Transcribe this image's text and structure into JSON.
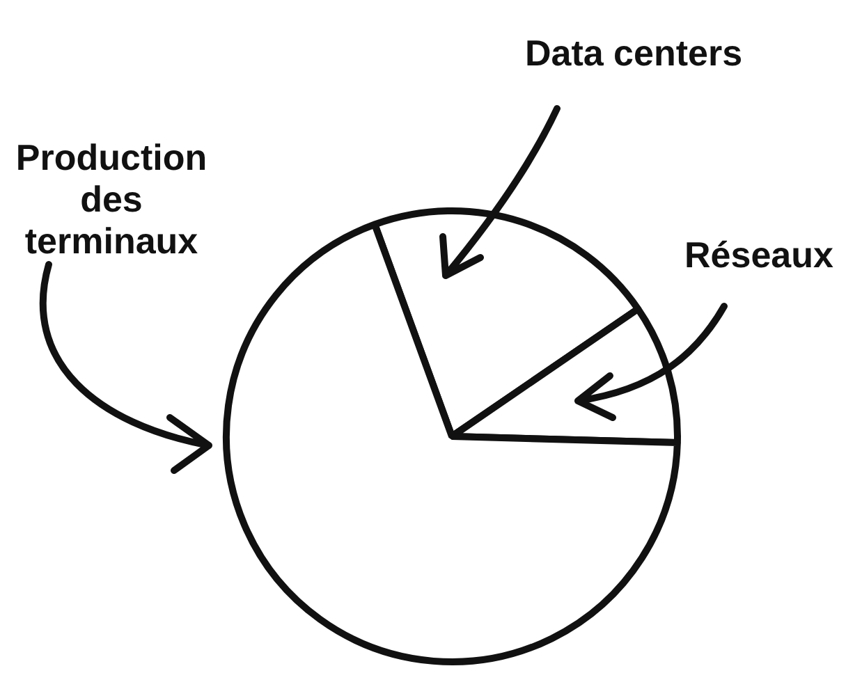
{
  "chart_data": {
    "type": "pie",
    "categories": [
      "Data centers",
      "Réseaux",
      "Production des terminaux"
    ],
    "values": [
      21,
      10,
      69
    ],
    "colors": [
      "#ffffff",
      "#ffffff",
      "#ffffff"
    ],
    "legend": false
  }
}
